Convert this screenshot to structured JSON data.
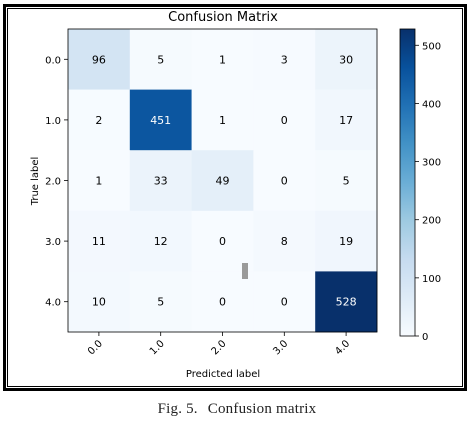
{
  "caption": {
    "figure_number": "Fig. 5.",
    "text": "Confusion matrix"
  },
  "chart_data": {
    "type": "heatmap",
    "title": "Confusion Matrix",
    "xlabel": "Predicted label",
    "ylabel": "True label",
    "x_tick_labels": [
      "0.0",
      "1.0",
      "2.0",
      "3.0",
      "4.0"
    ],
    "y_tick_labels": [
      "0.0",
      "1.0",
      "2.0",
      "3.0",
      "4.0"
    ],
    "matrix": [
      [
        96,
        5,
        1,
        3,
        30
      ],
      [
        2,
        451,
        1,
        0,
        17
      ],
      [
        1,
        33,
        49,
        0,
        5
      ],
      [
        11,
        12,
        0,
        8,
        19
      ],
      [
        10,
        5,
        0,
        0,
        528
      ]
    ],
    "colorbar": {
      "colormap": "Blues",
      "range": [
        0,
        528
      ],
      "tick_values": [
        0,
        100,
        200,
        300,
        400,
        500
      ],
      "tick_labels": [
        "0",
        "100",
        "200",
        "300",
        "400",
        "500"
      ]
    },
    "colors": {
      "low": "#f7fbff",
      "high": "#08306b",
      "text_dark": "#000000",
      "text_light": "#ffffff"
    }
  }
}
